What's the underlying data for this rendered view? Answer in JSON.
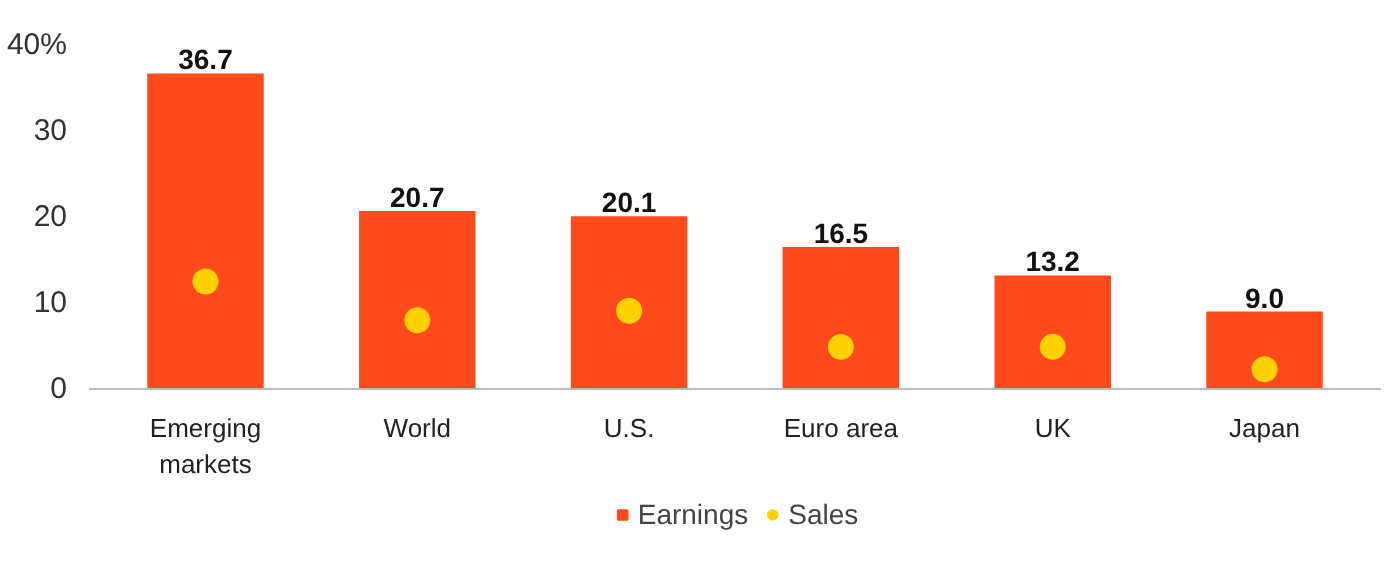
{
  "chart_data": {
    "type": "bar",
    "categories": [
      "Emerging markets",
      "World",
      "U.S.",
      "Euro area",
      "UK",
      "Japan"
    ],
    "series": [
      {
        "name": "Earnings",
        "type": "bar",
        "color": "#ff4a1c",
        "values": [
          36.7,
          20.7,
          20.1,
          16.5,
          13.2,
          9.0
        ],
        "value_labels": [
          "36.7",
          "20.7",
          "20.1",
          "16.5",
          "13.2",
          "9.0"
        ]
      },
      {
        "name": "Sales",
        "type": "scatter",
        "color": "#ffd100",
        "values": [
          12.5,
          8.0,
          9.1,
          4.9,
          4.9,
          2.3
        ]
      }
    ],
    "ylim": [
      0,
      40
    ],
    "yticks": [
      0,
      10,
      20,
      30,
      {
        "value": 40,
        "label": "40%"
      }
    ],
    "grid": false,
    "legend": "bottom",
    "marker": "circle"
  }
}
